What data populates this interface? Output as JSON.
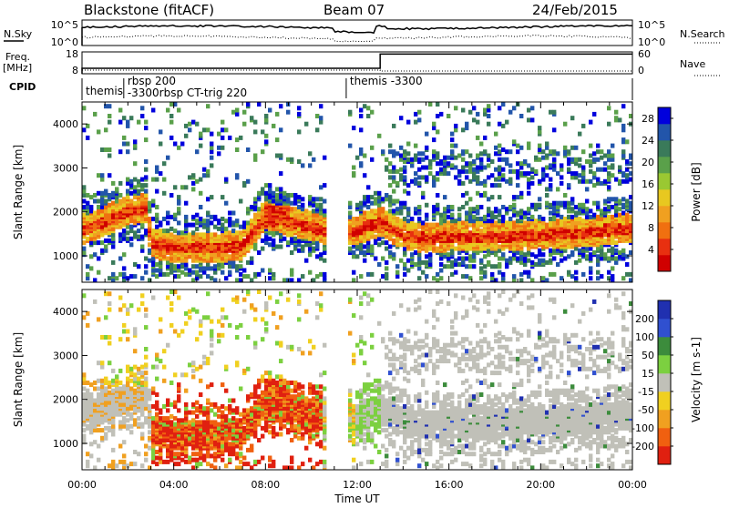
{
  "header": {
    "station": "Blackstone (fitACF)",
    "beam": "Beam 07",
    "date": "24/Feb/2015"
  },
  "top_panels": {
    "nsky_label": "N.Sky",
    "nsearch_label": "N.Search",
    "noise_ticks_left": [
      "10^5",
      "10^0"
    ],
    "noise_ticks_right": [
      "10^5",
      "10^0"
    ],
    "freq_label": "Freq.",
    "freq_unit": "[MHz]",
    "freq_ticks": [
      "18",
      "8"
    ],
    "nave_label": "Nave",
    "nave_ticks": [
      "60",
      "0"
    ],
    "cpid_label": "CPID",
    "cpid_entries": [
      {
        "text": "themis",
        "hour": 0.0
      },
      {
        "text": "rbsp 200",
        "hour": 1.9
      },
      {
        "text": "-3300rbsp CT-trig 220",
        "hour": 1.9
      },
      {
        "text": "themis -3300",
        "hour": 11.6
      }
    ],
    "freq_step_hour": 13.0,
    "freq_low_value": 10.5,
    "freq_high_value": 17.0
  },
  "chart_data": [
    {
      "type": "heatmap",
      "title": "Power",
      "ylabel": "Slant Range [km]",
      "xlabel": "",
      "xlim": [
        0,
        24
      ],
      "ylim": [
        400,
        4500
      ],
      "y_ticks": [
        1000,
        2000,
        3000,
        4000
      ],
      "colorbar": {
        "label": "Power [dB]",
        "ticks": [
          4,
          8,
          12,
          16,
          20,
          24,
          28
        ],
        "range": [
          0,
          30
        ],
        "colors": [
          "#0000dd",
          "#2255aa",
          "#3a7a5a",
          "#5aa04a",
          "#9ac832",
          "#e8c820",
          "#f0a020",
          "#f07010",
          "#e83010",
          "#d00000"
        ]
      },
      "band_center_km": [
        [
          0.0,
          1600
        ],
        [
          1.0,
          1800
        ],
        [
          2.0,
          2050
        ],
        [
          2.8,
          2100
        ],
        [
          3.0,
          1300
        ],
        [
          4.0,
          1200
        ],
        [
          5.0,
          1200
        ],
        [
          6.0,
          1200
        ],
        [
          7.0,
          1250
        ],
        [
          8.0,
          1950
        ],
        [
          9.0,
          1800
        ],
        [
          10.0,
          1700
        ],
        [
          11.0,
          1500
        ],
        [
          12.0,
          1600
        ],
        [
          13.0,
          1800
        ],
        [
          14.0,
          1500
        ],
        [
          15.0,
          1400
        ],
        [
          16.0,
          1450
        ],
        [
          18.0,
          1450
        ],
        [
          20.0,
          1500
        ],
        [
          22.0,
          1550
        ],
        [
          24.0,
          1650
        ]
      ]
    },
    {
      "type": "heatmap",
      "title": "Velocity",
      "ylabel": "Slant Range [km]",
      "xlabel": "Time UT",
      "xlim": [
        0,
        24
      ],
      "ylim": [
        400,
        4500
      ],
      "y_ticks": [
        1000,
        2000,
        3000,
        4000
      ],
      "x_ticks": [
        "00:00",
        "04:00",
        "08:00",
        "12:00",
        "16:00",
        "20:00",
        "00:00"
      ],
      "colorbar": {
        "label": "Velocity [m s-1]",
        "ticks": [
          200,
          100,
          50,
          15,
          -15,
          -50,
          -100,
          -200
        ],
        "colors": [
          "#2030b0",
          "#3050d0",
          "#3c8c3c",
          "#7cd040",
          "#c0c0b8",
          "#f0d020",
          "#f0a020",
          "#f06010",
          "#e02010"
        ]
      }
    }
  ]
}
